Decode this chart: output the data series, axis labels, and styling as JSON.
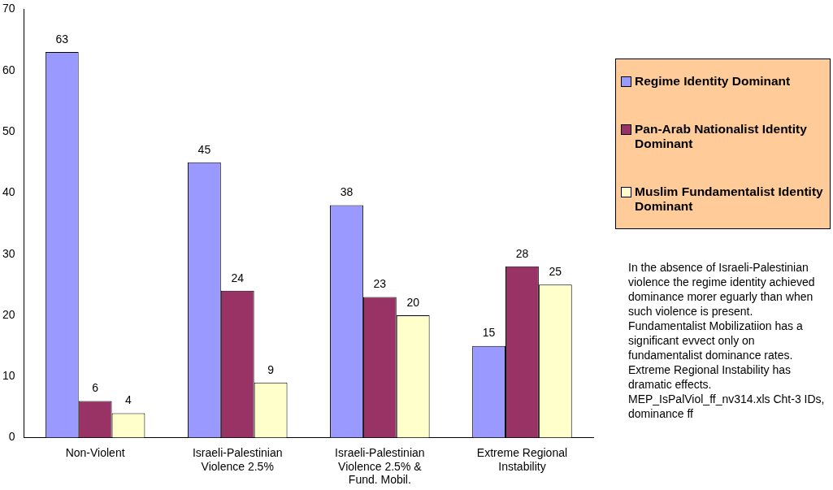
{
  "chart_data": {
    "type": "bar",
    "categories": [
      "Non-Violent",
      "Israeli-Palestinian Violence 2.5%",
      "Israeli-Palestinian Violence 2.5% & Fund. Mobil.",
      "Extreme Regional Instability"
    ],
    "series": [
      {
        "name": "Regime Identity Dominant",
        "color": "#9999ff",
        "values": [
          63,
          45,
          38,
          15
        ]
      },
      {
        "name": "Pan-Arab Nationalist Identity Dominant",
        "color": "#993366",
        "values": [
          6,
          24,
          23,
          28
        ]
      },
      {
        "name": "Muslim Fundamentalist Identity Dominant",
        "color": "#ffffcc",
        "values": [
          4,
          9,
          20,
          25
        ]
      }
    ],
    "ylim": [
      0,
      70
    ],
    "yticks": [
      0,
      10,
      20,
      30,
      40,
      50,
      60,
      70
    ],
    "grid": false,
    "legend": "right",
    "data_labels": true,
    "annotations": [
      "In the absence of Israeli-Palestinian violence the regime identity achieved dominance morer eguarly than when such violence is present. Fundamentalist Mobilizatiion has a significant evvect only on fundamentalist dominance rates. Extreme Regional Instability has dramatic effects. MEP_IsPalViol_ff_nv314.xls Cht-3 IDs, dominance ff"
    ]
  }
}
